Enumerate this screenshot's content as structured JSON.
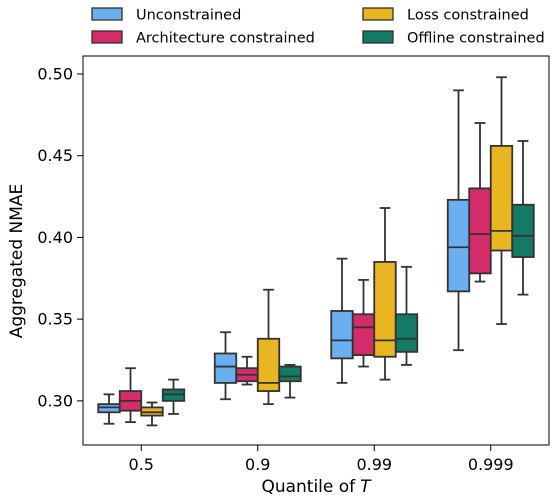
{
  "chart_data": {
    "type": "box",
    "xlabel": "Quantile of",
    "xlabel_var": "T",
    "ylabel": "Aggregated NMAE",
    "ylim": [
      0.273,
      0.511
    ],
    "yticks": [
      "0.30",
      "0.35",
      "0.40",
      "0.45",
      "0.50"
    ],
    "ytick_values": [
      0.3,
      0.35,
      0.4,
      0.45,
      0.5
    ],
    "categories": [
      "0.5",
      "0.9",
      "0.99",
      "0.999"
    ],
    "legend_position": "top",
    "series": [
      {
        "name": "Unconstrained",
        "color": "#6ab0f0",
        "boxes": [
          {
            "whislo": 0.286,
            "q1": 0.293,
            "med": 0.296,
            "q3": 0.298,
            "whishi": 0.304
          },
          {
            "whislo": 0.301,
            "q1": 0.311,
            "med": 0.321,
            "q3": 0.329,
            "whishi": 0.342
          },
          {
            "whislo": 0.311,
            "q1": 0.326,
            "med": 0.337,
            "q3": 0.355,
            "whishi": 0.387
          },
          {
            "whislo": 0.331,
            "q1": 0.367,
            "med": 0.394,
            "q3": 0.423,
            "whishi": 0.49
          }
        ]
      },
      {
        "name": "Architecture constrained",
        "color": "#d42b6a",
        "boxes": [
          {
            "whislo": 0.287,
            "q1": 0.294,
            "med": 0.3,
            "q3": 0.306,
            "whishi": 0.32
          },
          {
            "whislo": 0.31,
            "q1": 0.312,
            "med": 0.316,
            "q3": 0.32,
            "whishi": 0.327
          },
          {
            "whislo": 0.321,
            "q1": 0.328,
            "med": 0.345,
            "q3": 0.353,
            "whishi": 0.374
          },
          {
            "whislo": 0.373,
            "q1": 0.378,
            "med": 0.402,
            "q3": 0.43,
            "whishi": 0.47
          }
        ]
      },
      {
        "name": "Loss constrained",
        "color": "#e9b622",
        "boxes": [
          {
            "whislo": 0.285,
            "q1": 0.291,
            "med": 0.293,
            "q3": 0.296,
            "whishi": 0.299
          },
          {
            "whislo": 0.298,
            "q1": 0.306,
            "med": 0.311,
            "q3": 0.338,
            "whishi": 0.368
          },
          {
            "whislo": 0.313,
            "q1": 0.327,
            "med": 0.337,
            "q3": 0.385,
            "whishi": 0.418
          },
          {
            "whislo": 0.347,
            "q1": 0.392,
            "med": 0.404,
            "q3": 0.456,
            "whishi": 0.498
          }
        ]
      },
      {
        "name": "Offline constrained",
        "color": "#127a65",
        "boxes": [
          {
            "whislo": 0.292,
            "q1": 0.3,
            "med": 0.304,
            "q3": 0.307,
            "whishi": 0.313
          },
          {
            "whislo": 0.302,
            "q1": 0.312,
            "med": 0.315,
            "q3": 0.321,
            "whishi": 0.322
          },
          {
            "whislo": 0.322,
            "q1": 0.33,
            "med": 0.338,
            "q3": 0.353,
            "whishi": 0.382
          },
          {
            "whislo": 0.365,
            "q1": 0.388,
            "med": 0.401,
            "q3": 0.42,
            "whishi": 0.459
          }
        ]
      }
    ]
  }
}
